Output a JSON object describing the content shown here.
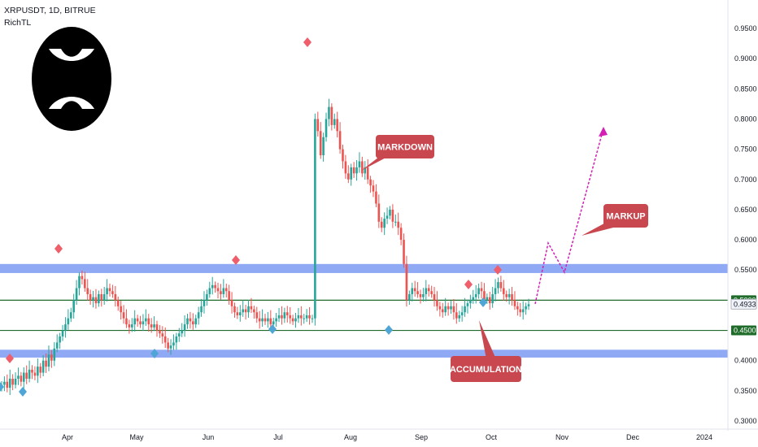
{
  "header": {
    "symbol_line": "XRPUSDT, 1D, BITRUE",
    "indicator": "RichTL"
  },
  "logo": {
    "name": "xrp-logo",
    "shape": "black-circle-white-x"
  },
  "colors": {
    "bg": "#ffffff",
    "up": "#26a69a",
    "down": "#ef5350",
    "zone": "#6b8cf0",
    "hline": "#1e6b2a",
    "marker_red": "#ef5f6b",
    "marker_blue": "#4fa6d6",
    "label_bg": "#c9474f",
    "projection": "#d41fb5"
  },
  "chart_data": {
    "type": "candlestick",
    "title": "XRPUSDT, 1D, BITRUE",
    "ylim": [
      0.29,
      0.98
    ],
    "y_ticks": [
      "0.3000",
      "0.3500",
      "0.4000",
      "0.4500",
      "0.5000",
      "0.5500",
      "0.6000",
      "0.6500",
      "0.7000",
      "0.7500",
      "0.8000",
      "0.8500",
      "0.9000",
      "0.9500"
    ],
    "x_ticks": [
      "Apr",
      "May",
      "Jun",
      "Jul",
      "Aug",
      "Sep",
      "Oct",
      "Nov",
      "Dec",
      "2024"
    ],
    "price_close": [
      0.36,
      0.365,
      0.355,
      0.37,
      0.36,
      0.37,
      0.375,
      0.365,
      0.38,
      0.37,
      0.385,
      0.38,
      0.375,
      0.39,
      0.38,
      0.4,
      0.39,
      0.41,
      0.4,
      0.42,
      0.43,
      0.44,
      0.45,
      0.46,
      0.47,
      0.48,
      0.5,
      0.52,
      0.54,
      0.535,
      0.52,
      0.51,
      0.5,
      0.505,
      0.495,
      0.51,
      0.5,
      0.51,
      0.52,
      0.515,
      0.51,
      0.5,
      0.49,
      0.48,
      0.47,
      0.46,
      0.455,
      0.46,
      0.47,
      0.465,
      0.46,
      0.465,
      0.47,
      0.46,
      0.455,
      0.46,
      0.45,
      0.445,
      0.44,
      0.43,
      0.42,
      0.425,
      0.43,
      0.44,
      0.445,
      0.45,
      0.46,
      0.47,
      0.465,
      0.46,
      0.47,
      0.48,
      0.49,
      0.5,
      0.51,
      0.52,
      0.525,
      0.52,
      0.515,
      0.51,
      0.52,
      0.515,
      0.5,
      0.49,
      0.48,
      0.475,
      0.48,
      0.485,
      0.48,
      0.49,
      0.485,
      0.48,
      0.47,
      0.465,
      0.47,
      0.465,
      0.47,
      0.46,
      0.465,
      0.47,
      0.475,
      0.47,
      0.48,
      0.475,
      0.47,
      0.465,
      0.47,
      0.475,
      0.47,
      0.47,
      0.475,
      0.47,
      0.47,
      0.8,
      0.78,
      0.74,
      0.77,
      0.8,
      0.82,
      0.79,
      0.8,
      0.78,
      0.75,
      0.73,
      0.71,
      0.7,
      0.72,
      0.71,
      0.72,
      0.73,
      0.71,
      0.72,
      0.7,
      0.69,
      0.68,
      0.66,
      0.63,
      0.62,
      0.635,
      0.64,
      0.65,
      0.63,
      0.63,
      0.62,
      0.6,
      0.56,
      0.5,
      0.51,
      0.52,
      0.515,
      0.51,
      0.505,
      0.51,
      0.52,
      0.515,
      0.51,
      0.5,
      0.49,
      0.485,
      0.48,
      0.49,
      0.485,
      0.49,
      0.48,
      0.47,
      0.475,
      0.48,
      0.49,
      0.495,
      0.5,
      0.505,
      0.51,
      0.52,
      0.515,
      0.5,
      0.505,
      0.495,
      0.51,
      0.52,
      0.53,
      0.52,
      0.51,
      0.505,
      0.51,
      0.5,
      0.49,
      0.485,
      0.48,
      0.485,
      0.49,
      0.4933
    ],
    "horizontal_levels": [
      0.5,
      0.45
    ],
    "zones": [
      [
        0.545,
        0.56
      ],
      [
        0.405,
        0.418
      ]
    ],
    "price_labels": [
      {
        "value": "0.5000",
        "style": "dark"
      },
      {
        "value": "0.4933",
        "style": "light"
      },
      {
        "value": "0.4500",
        "style": "dark"
      }
    ],
    "projection_path": [
      [
        0.49,
        0
      ],
      [
        0.6,
        1
      ],
      [
        0.55,
        2
      ],
      [
        0.79,
        3
      ]
    ],
    "annotations": [
      {
        "text": "MARKDOWN"
      },
      {
        "text": "MARKUP"
      },
      {
        "text": "ACCUMULATION"
      }
    ],
    "grid": false,
    "legend": "none"
  }
}
